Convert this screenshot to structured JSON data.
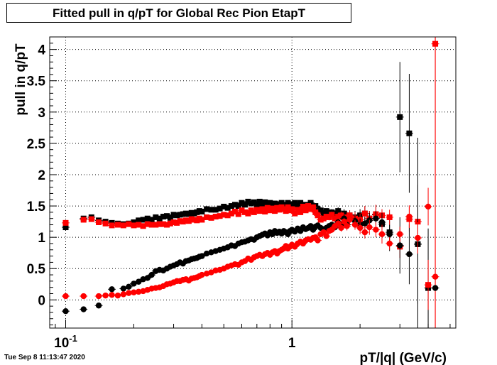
{
  "chart_data": {
    "type": "scatter",
    "title": "Fitted pull in q/pT for Global Rec Pion EtapT",
    "xlabel": "pT/|q| (GeV/c)",
    "ylabel": "pull in q/pT",
    "x_scale": "log",
    "xlim": [
      0.085,
      5.3
    ],
    "ylim": [
      -0.45,
      4.2
    ],
    "x_ticks": [
      {
        "value": 0.1,
        "label": "10^-1"
      },
      {
        "value": 1,
        "label": "1"
      }
    ],
    "y_ticks": [
      0,
      0.5,
      1,
      1.5,
      2,
      2.5,
      3,
      3.5,
      4
    ],
    "grid": true,
    "colors": {
      "black": "#000000",
      "red": "#ff0000"
    },
    "series": [
      {
        "marker": "square",
        "color": "#000000",
        "x": [
          0.1,
          0.12,
          0.13,
          0.14,
          0.15,
          0.16,
          0.17,
          0.18,
          0.19,
          0.2,
          0.21,
          0.22,
          0.23,
          0.24,
          0.25,
          0.26,
          0.27,
          0.28,
          0.29,
          0.3,
          0.31,
          0.32,
          0.33,
          0.34,
          0.35,
          0.36,
          0.37,
          0.38,
          0.39,
          0.4,
          0.42,
          0.44,
          0.46,
          0.48,
          0.5,
          0.52,
          0.54,
          0.56,
          0.58,
          0.6,
          0.62,
          0.64,
          0.66,
          0.68,
          0.7,
          0.72,
          0.74,
          0.76,
          0.78,
          0.8,
          0.82,
          0.84,
          0.86,
          0.88,
          0.9,
          0.92,
          0.94,
          0.96,
          0.98,
          1.0,
          1.03,
          1.06,
          1.09,
          1.12,
          1.15,
          1.18,
          1.21,
          1.24,
          1.27,
          1.3,
          1.34,
          1.38,
          1.42,
          1.46,
          1.5,
          1.55,
          1.6,
          1.65,
          1.7,
          1.75,
          1.8,
          1.9,
          2.0,
          2.1,
          2.2,
          2.35,
          2.5,
          2.7,
          3.0,
          3.3,
          3.6,
          4.0
        ],
        "y": [
          1.16,
          1.3,
          1.32,
          1.27,
          1.25,
          1.23,
          1.22,
          1.21,
          1.22,
          1.24,
          1.27,
          1.28,
          1.3,
          1.28,
          1.32,
          1.3,
          1.33,
          1.34,
          1.31,
          1.36,
          1.35,
          1.36,
          1.37,
          1.38,
          1.37,
          1.39,
          1.38,
          1.4,
          1.42,
          1.41,
          1.45,
          1.44,
          1.44,
          1.46,
          1.49,
          1.47,
          1.5,
          1.52,
          1.5,
          1.55,
          1.52,
          1.57,
          1.54,
          1.56,
          1.52,
          1.57,
          1.52,
          1.56,
          1.5,
          1.55,
          1.49,
          1.54,
          1.53,
          1.5,
          1.55,
          1.48,
          1.52,
          1.55,
          1.5,
          1.53,
          1.55,
          1.5,
          1.55,
          1.48,
          1.52,
          1.5,
          1.55,
          1.47,
          1.5,
          1.45,
          1.43,
          1.38,
          1.42,
          1.36,
          1.4,
          1.38,
          1.42,
          1.35,
          1.38,
          1.33,
          1.35,
          1.32,
          1.35,
          1.38,
          1.3,
          1.36,
          1.21,
          1.08,
          2.92,
          2.66,
          0.89,
          0.19
        ],
        "err": [
          0.03,
          0.03,
          0.03,
          0.02,
          0.02,
          0.02,
          0.02,
          0.02,
          0.02,
          0.02,
          0.02,
          0.02,
          0.02,
          0.02,
          0.02,
          0.02,
          0.02,
          0.02,
          0.02,
          0.02,
          0.02,
          0.02,
          0.02,
          0.02,
          0.02,
          0.02,
          0.02,
          0.02,
          0.02,
          0.02,
          0.02,
          0.02,
          0.02,
          0.02,
          0.02,
          0.02,
          0.02,
          0.02,
          0.02,
          0.02,
          0.02,
          0.02,
          0.02,
          0.02,
          0.02,
          0.02,
          0.02,
          0.02,
          0.02,
          0.02,
          0.02,
          0.02,
          0.02,
          0.02,
          0.02,
          0.02,
          0.02,
          0.02,
          0.02,
          0.02,
          0.02,
          0.02,
          0.02,
          0.03,
          0.03,
          0.03,
          0.03,
          0.03,
          0.03,
          0.03,
          0.04,
          0.04,
          0.04,
          0.05,
          0.05,
          0.05,
          0.06,
          0.06,
          0.07,
          0.08,
          0.08,
          0.1,
          0.1,
          0.12,
          0.12,
          0.15,
          0.2,
          0.3,
          0.88,
          0.95,
          0.95,
          0.95
        ]
      },
      {
        "marker": "square",
        "color": "#ff0000",
        "x": [
          0.1,
          0.12,
          0.13,
          0.14,
          0.15,
          0.16,
          0.17,
          0.18,
          0.19,
          0.2,
          0.21,
          0.22,
          0.23,
          0.24,
          0.25,
          0.26,
          0.27,
          0.28,
          0.29,
          0.3,
          0.31,
          0.32,
          0.33,
          0.34,
          0.35,
          0.36,
          0.37,
          0.38,
          0.39,
          0.4,
          0.42,
          0.44,
          0.46,
          0.48,
          0.5,
          0.52,
          0.54,
          0.56,
          0.58,
          0.6,
          0.62,
          0.64,
          0.66,
          0.68,
          0.7,
          0.72,
          0.74,
          0.76,
          0.78,
          0.8,
          0.82,
          0.84,
          0.86,
          0.88,
          0.9,
          0.92,
          0.94,
          0.96,
          0.98,
          1.0,
          1.03,
          1.06,
          1.09,
          1.12,
          1.15,
          1.18,
          1.21,
          1.24,
          1.27,
          1.3,
          1.34,
          1.38,
          1.42,
          1.46,
          1.5,
          1.55,
          1.6,
          1.65,
          1.7,
          1.75,
          1.8,
          1.9,
          2.0,
          2.1,
          2.2,
          2.35,
          2.5,
          2.7,
          3.0,
          3.3,
          3.6,
          4.0,
          4.3
        ],
        "y": [
          1.23,
          1.28,
          1.29,
          1.24,
          1.22,
          1.19,
          1.2,
          1.19,
          1.21,
          1.19,
          1.2,
          1.18,
          1.21,
          1.2,
          1.2,
          1.21,
          1.21,
          1.2,
          1.22,
          1.24,
          1.23,
          1.26,
          1.25,
          1.27,
          1.26,
          1.29,
          1.28,
          1.27,
          1.3,
          1.28,
          1.32,
          1.31,
          1.33,
          1.34,
          1.36,
          1.35,
          1.38,
          1.41,
          1.37,
          1.43,
          1.4,
          1.38,
          1.43,
          1.4,
          1.44,
          1.42,
          1.45,
          1.41,
          1.47,
          1.43,
          1.46,
          1.42,
          1.47,
          1.44,
          1.48,
          1.45,
          1.42,
          1.48,
          1.43,
          1.45,
          1.38,
          1.44,
          1.4,
          1.49,
          1.43,
          1.5,
          1.45,
          1.48,
          1.4,
          1.35,
          1.28,
          1.3,
          1.33,
          1.32,
          1.36,
          1.3,
          1.33,
          1.35,
          1.28,
          1.32,
          1.35,
          1.3,
          1.28,
          1.38,
          1.3,
          1.37,
          1.35,
          1.32,
          0.85,
          1.29,
          1.25,
          0.24,
          4.09
        ],
        "err": [
          0.03,
          0.03,
          0.03,
          0.02,
          0.02,
          0.02,
          0.02,
          0.02,
          0.02,
          0.02,
          0.02,
          0.02,
          0.02,
          0.02,
          0.02,
          0.02,
          0.02,
          0.02,
          0.02,
          0.02,
          0.02,
          0.02,
          0.02,
          0.02,
          0.02,
          0.02,
          0.02,
          0.02,
          0.02,
          0.02,
          0.02,
          0.02,
          0.02,
          0.02,
          0.02,
          0.02,
          0.02,
          0.02,
          0.02,
          0.02,
          0.02,
          0.02,
          0.02,
          0.02,
          0.02,
          0.02,
          0.02,
          0.02,
          0.02,
          0.02,
          0.02,
          0.02,
          0.02,
          0.02,
          0.02,
          0.02,
          0.02,
          0.02,
          0.02,
          0.02,
          0.02,
          0.02,
          0.02,
          0.03,
          0.03,
          0.03,
          0.03,
          0.03,
          0.03,
          0.03,
          0.04,
          0.04,
          0.04,
          0.05,
          0.05,
          0.05,
          0.06,
          0.06,
          0.07,
          0.08,
          0.08,
          0.1,
          0.1,
          0.12,
          0.12,
          0.15,
          0.1,
          0.12,
          0.18,
          0.2,
          0.2,
          0.4,
          4.6
        ]
      },
      {
        "marker": "circle",
        "color": "#000000",
        "x": [
          0.1,
          0.12,
          0.14,
          0.16,
          0.18,
          0.19,
          0.2,
          0.21,
          0.22,
          0.23,
          0.24,
          0.25,
          0.26,
          0.27,
          0.28,
          0.29,
          0.3,
          0.31,
          0.32,
          0.33,
          0.34,
          0.35,
          0.36,
          0.37,
          0.38,
          0.39,
          0.4,
          0.42,
          0.44,
          0.46,
          0.48,
          0.5,
          0.52,
          0.54,
          0.56,
          0.58,
          0.6,
          0.62,
          0.64,
          0.66,
          0.68,
          0.7,
          0.72,
          0.74,
          0.76,
          0.78,
          0.8,
          0.82,
          0.84,
          0.86,
          0.88,
          0.9,
          0.92,
          0.94,
          0.96,
          0.98,
          1.0,
          1.03,
          1.06,
          1.09,
          1.12,
          1.15,
          1.18,
          1.21,
          1.24,
          1.27,
          1.3,
          1.34,
          1.38,
          1.42,
          1.46,
          1.5,
          1.55,
          1.6,
          1.65,
          1.7,
          1.75,
          1.8,
          1.9,
          2.0,
          2.1,
          2.2,
          2.35,
          2.5,
          2.7,
          3.0,
          3.3,
          3.6
        ],
        "y": [
          -0.18,
          -0.15,
          -0.09,
          0.17,
          0.18,
          0.21,
          0.26,
          0.29,
          0.33,
          0.35,
          0.4,
          0.46,
          0.48,
          0.47,
          0.5,
          0.53,
          0.55,
          0.57,
          0.6,
          0.58,
          0.62,
          0.63,
          0.65,
          0.66,
          0.67,
          0.69,
          0.7,
          0.74,
          0.76,
          0.78,
          0.8,
          0.82,
          0.84,
          0.87,
          0.86,
          0.9,
          0.92,
          0.93,
          0.95,
          0.97,
          0.96,
          1.0,
          1.02,
          1.04,
          1.06,
          1.03,
          1.08,
          1.05,
          1.1,
          1.07,
          1.09,
          1.06,
          1.1,
          1.08,
          1.05,
          1.1,
          1.12,
          1.09,
          1.14,
          1.1,
          1.16,
          1.13,
          1.15,
          1.18,
          1.12,
          1.17,
          1.19,
          1.15,
          1.13,
          1.15,
          1.18,
          1.2,
          1.16,
          1.24,
          1.18,
          1.3,
          1.2,
          1.28,
          1.26,
          1.2,
          1.22,
          1.27,
          1.3,
          1.24,
          1.05,
          0.87,
          0.73,
          0.89
        ],
        "err": [
          0.03,
          0.03,
          0.03,
          0.02,
          0.02,
          0.02,
          0.02,
          0.02,
          0.02,
          0.02,
          0.02,
          0.02,
          0.02,
          0.02,
          0.02,
          0.02,
          0.02,
          0.02,
          0.02,
          0.02,
          0.02,
          0.02,
          0.02,
          0.02,
          0.02,
          0.02,
          0.02,
          0.02,
          0.02,
          0.02,
          0.02,
          0.02,
          0.02,
          0.02,
          0.02,
          0.02,
          0.02,
          0.02,
          0.02,
          0.02,
          0.02,
          0.02,
          0.02,
          0.02,
          0.02,
          0.02,
          0.02,
          0.02,
          0.02,
          0.02,
          0.02,
          0.02,
          0.02,
          0.02,
          0.02,
          0.02,
          0.02,
          0.02,
          0.02,
          0.02,
          0.02,
          0.03,
          0.03,
          0.03,
          0.03,
          0.03,
          0.03,
          0.03,
          0.04,
          0.04,
          0.04,
          0.05,
          0.05,
          0.05,
          0.06,
          0.06,
          0.07,
          0.08,
          0.08,
          0.1,
          0.1,
          0.12,
          0.12,
          0.15,
          0.15,
          0.45,
          0.48,
          1.7
        ]
      },
      {
        "marker": "circle",
        "color": "#ff0000",
        "x": [
          0.1,
          0.12,
          0.14,
          0.15,
          0.16,
          0.17,
          0.18,
          0.19,
          0.2,
          0.21,
          0.22,
          0.23,
          0.24,
          0.25,
          0.26,
          0.27,
          0.28,
          0.29,
          0.3,
          0.31,
          0.32,
          0.33,
          0.34,
          0.35,
          0.36,
          0.37,
          0.38,
          0.39,
          0.4,
          0.42,
          0.44,
          0.46,
          0.48,
          0.5,
          0.52,
          0.54,
          0.56,
          0.58,
          0.6,
          0.62,
          0.64,
          0.66,
          0.68,
          0.7,
          0.72,
          0.74,
          0.76,
          0.78,
          0.8,
          0.82,
          0.84,
          0.86,
          0.88,
          0.9,
          0.92,
          0.94,
          0.96,
          0.98,
          1.0,
          1.03,
          1.06,
          1.09,
          1.12,
          1.15,
          1.18,
          1.21,
          1.24,
          1.27,
          1.3,
          1.34,
          1.38,
          1.42,
          1.46,
          1.5,
          1.55,
          1.6,
          1.65,
          1.7,
          1.75,
          1.8,
          1.9,
          2.0,
          2.1,
          2.2,
          2.35,
          2.5,
          2.7,
          3.0,
          3.3,
          3.6,
          4.0
        ],
        "y": [
          0.06,
          0.06,
          0.06,
          0.07,
          0.08,
          0.07,
          0.09,
          0.11,
          0.12,
          0.13,
          0.14,
          0.16,
          0.18,
          0.19,
          0.2,
          0.22,
          0.25,
          0.26,
          0.28,
          0.3,
          0.3,
          0.32,
          0.33,
          0.31,
          0.34,
          0.35,
          0.36,
          0.38,
          0.4,
          0.42,
          0.44,
          0.47,
          0.48,
          0.5,
          0.53,
          0.55,
          0.57,
          0.56,
          0.6,
          0.62,
          0.66,
          0.64,
          0.68,
          0.7,
          0.72,
          0.7,
          0.73,
          0.75,
          0.72,
          0.76,
          0.78,
          0.74,
          0.78,
          0.8,
          0.82,
          0.86,
          0.82,
          0.85,
          0.88,
          0.85,
          0.9,
          0.93,
          0.9,
          0.95,
          0.97,
          0.96,
          0.99,
          1.0,
          0.95,
          1.05,
          1.08,
          1.02,
          1.1,
          1.12,
          1.18,
          1.22,
          1.15,
          1.25,
          1.18,
          1.28,
          1.2,
          1.15,
          1.08,
          1.16,
          1.12,
          1.05,
          0.9,
          1.05,
          1.33,
          0.99,
          1.49
        ],
        "err": [
          0.03,
          0.03,
          0.03,
          0.02,
          0.02,
          0.02,
          0.02,
          0.02,
          0.02,
          0.02,
          0.02,
          0.02,
          0.02,
          0.02,
          0.02,
          0.02,
          0.02,
          0.02,
          0.02,
          0.02,
          0.02,
          0.02,
          0.02,
          0.02,
          0.02,
          0.02,
          0.02,
          0.02,
          0.02,
          0.02,
          0.02,
          0.02,
          0.02,
          0.02,
          0.02,
          0.02,
          0.02,
          0.02,
          0.02,
          0.02,
          0.02,
          0.02,
          0.02,
          0.02,
          0.02,
          0.02,
          0.02,
          0.02,
          0.02,
          0.02,
          0.02,
          0.02,
          0.02,
          0.02,
          0.02,
          0.02,
          0.02,
          0.02,
          0.02,
          0.02,
          0.02,
          0.02,
          0.02,
          0.03,
          0.03,
          0.03,
          0.03,
          0.03,
          0.03,
          0.03,
          0.04,
          0.04,
          0.04,
          0.05,
          0.05,
          0.05,
          0.06,
          0.06,
          0.07,
          0.08,
          0.08,
          0.1,
          0.1,
          0.12,
          0.12,
          0.15,
          0.1,
          0.12,
          0.18,
          0.25,
          0.3
        ]
      },
      {
        "marker": "circle",
        "color": "#ff0000",
        "x": [
          4.3
        ],
        "y": [
          0.37
        ],
        "err": [
          4.6
        ]
      },
      {
        "marker": "circle",
        "color": "#000000",
        "x": [
          4.3
        ],
        "y": [
          0.19
        ],
        "err": [
          0.03
        ]
      }
    ],
    "timestamp": "Tue Sep  8 11:13:47 2020"
  }
}
